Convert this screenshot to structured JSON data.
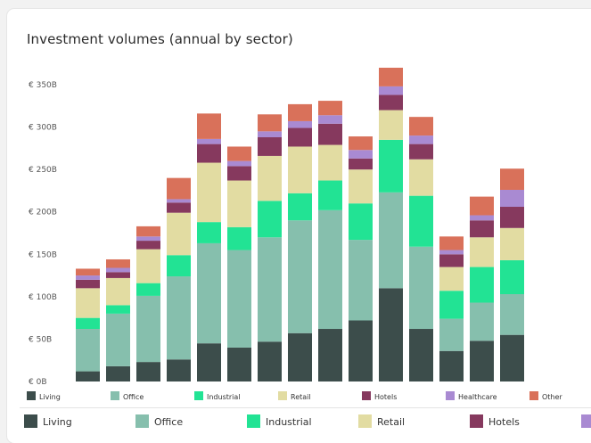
{
  "chart_data": {
    "type": "bar",
    "stacked": true,
    "title": "Investment volumes (annual by sector)",
    "ylabel": "",
    "xlabel": "",
    "ylim": [
      0,
      370
    ],
    "grid": false,
    "legend_placement": "bottom",
    "yticks": [
      {
        "value": 0,
        "label": "€ 0B"
      },
      {
        "value": 50,
        "label": "€ 50B"
      },
      {
        "value": 100,
        "label": "€ 100B"
      },
      {
        "value": 150,
        "label": "€ 150B"
      },
      {
        "value": 200,
        "label": "€ 200B"
      },
      {
        "value": 250,
        "label": "€ 250B"
      },
      {
        "value": 300,
        "label": "€ 300B"
      },
      {
        "value": 350,
        "label": "€ 350B"
      }
    ],
    "series": [
      {
        "name": "Living",
        "color": "#3c4d4b",
        "values": [
          12,
          18,
          23,
          26,
          45,
          40,
          47,
          57,
          62,
          72,
          110,
          62,
          36,
          48,
          55
        ]
      },
      {
        "name": "Office",
        "color": "#86bfad",
        "values": [
          50,
          62,
          78,
          98,
          118,
          115,
          123,
          133,
          140,
          95,
          113,
          97,
          38,
          45,
          48
        ]
      },
      {
        "name": "Industrial",
        "color": "#22e394",
        "values": [
          13,
          10,
          15,
          25,
          25,
          27,
          43,
          32,
          35,
          43,
          62,
          60,
          33,
          42,
          40
        ]
      },
      {
        "name": "Retail",
        "color": "#e2dca2",
        "values": [
          35,
          32,
          40,
          50,
          70,
          55,
          53,
          55,
          42,
          40,
          35,
          43,
          28,
          35,
          38
        ]
      },
      {
        "name": "Hotels",
        "color": "#86395e",
        "values": [
          10,
          7,
          10,
          12,
          22,
          17,
          22,
          22,
          25,
          13,
          18,
          18,
          15,
          20,
          25
        ]
      },
      {
        "name": "Healthcare",
        "color": "#a98ad2",
        "values": [
          5,
          5,
          5,
          4,
          6,
          6,
          7,
          8,
          10,
          10,
          10,
          10,
          5,
          6,
          20
        ]
      },
      {
        "name": "Other",
        "color": "#d9715a",
        "values": [
          8,
          10,
          12,
          25,
          30,
          17,
          20,
          20,
          17,
          16,
          22,
          22,
          16,
          22,
          25
        ]
      }
    ]
  }
}
